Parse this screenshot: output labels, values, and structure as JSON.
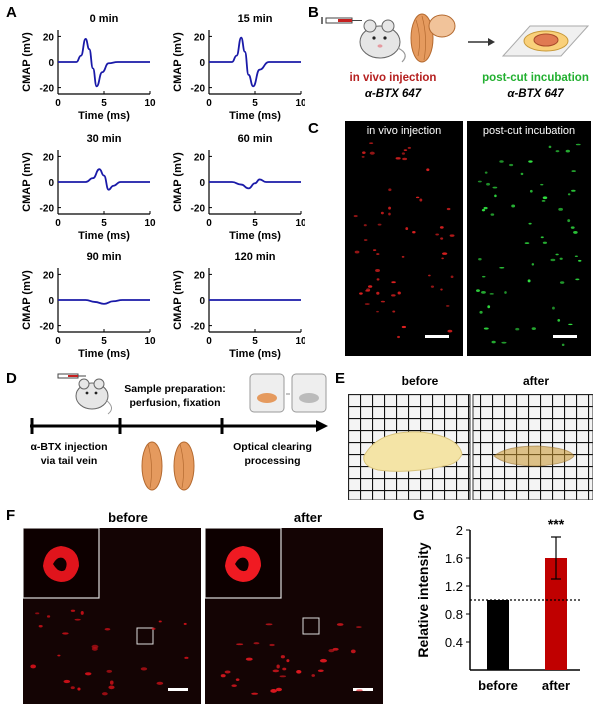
{
  "panel_labels": {
    "A": "A",
    "B": "B",
    "C": "C",
    "D": "D",
    "E": "E",
    "F": "F",
    "G": "G"
  },
  "panelA": {
    "ylabel": "CMAP (mV)",
    "xlabel": "Time (ms)",
    "yticks": [
      "20",
      "0",
      "-20"
    ],
    "xticks": [
      "0",
      "5",
      "10"
    ],
    "titles": [
      "0 min",
      "15 min",
      "30 min",
      "60 min",
      "90 min",
      "120 min"
    ],
    "line_color": "#1a1aa8"
  },
  "panelB": {
    "label_invivo": "in vivo injection",
    "label_postcut": "post-cut incubation",
    "sub_left": "α-BTX 647",
    "sub_right": "α-BTX 647",
    "color_red": "#b52020",
    "color_green": "#22b030"
  },
  "panelC": {
    "left_title": "in vivo injection",
    "right_title": "post-cut incubation"
  },
  "panelD": {
    "step1": "α-BTX injection\nvia tail vein",
    "step2_title": "Sample preparation:",
    "step2_sub": "perfusion, fixation",
    "step3": "Optical clearing\nprocessing"
  },
  "panelE": {
    "before": "before",
    "after": "after"
  },
  "panelF": {
    "before": "before",
    "after": "after"
  },
  "chart_data": [
    {
      "type": "line",
      "title": "0 min",
      "xlabel": "Time (ms)",
      "ylabel": "CMAP (mV)",
      "xlim": [
        0,
        10
      ],
      "ylim": [
        -25,
        25
      ],
      "x": [
        0,
        2,
        2.5,
        3.0,
        3.4,
        3.8,
        4.2,
        4.8,
        5.5,
        6.5,
        8,
        10
      ],
      "y": [
        0,
        0,
        5,
        18,
        10,
        -5,
        -19,
        -8,
        -1,
        0,
        0,
        0
      ]
    },
    {
      "type": "line",
      "title": "15 min",
      "xlabel": "Time (ms)",
      "ylabel": "CMAP (mV)",
      "xlim": [
        0,
        10
      ],
      "ylim": [
        -25,
        25
      ],
      "x": [
        0,
        2.5,
        3.0,
        3.5,
        3.9,
        4.3,
        4.8,
        5.5,
        6.5,
        10
      ],
      "y": [
        0,
        0,
        5,
        19,
        8,
        -10,
        -19,
        -6,
        0,
        0
      ]
    },
    {
      "type": "line",
      "title": "30 min",
      "xlabel": "Time (ms)",
      "ylabel": "CMAP (mV)",
      "xlim": [
        0,
        10
      ],
      "ylim": [
        -25,
        25
      ],
      "x": [
        0,
        3,
        3.8,
        4.5,
        5.0,
        5.5,
        6.0,
        6.8,
        10
      ],
      "y": [
        0,
        0,
        3,
        10,
        5,
        -6,
        -3,
        0,
        0
      ]
    },
    {
      "type": "line",
      "title": "60 min",
      "xlabel": "Time (ms)",
      "ylabel": "CMAP (mV)",
      "xlim": [
        0,
        10
      ],
      "ylim": [
        -25,
        25
      ],
      "x": [
        0,
        2.5,
        3.5,
        4.3,
        5.0,
        5.5,
        6.2,
        7.5,
        10
      ],
      "y": [
        0,
        0,
        -2,
        -5,
        -1,
        2,
        0,
        0,
        0
      ]
    },
    {
      "type": "line",
      "title": "90 min",
      "xlabel": "Time (ms)",
      "ylabel": "CMAP (mV)",
      "xlim": [
        0,
        10
      ],
      "ylim": [
        -25,
        25
      ],
      "x": [
        0,
        3,
        4,
        5,
        6,
        7,
        10
      ],
      "y": [
        0,
        0,
        -1.5,
        -3,
        -1,
        0,
        0
      ]
    },
    {
      "type": "line",
      "title": "120 min",
      "xlabel": "Time (ms)",
      "ylabel": "CMAP (mV)",
      "xlim": [
        0,
        10
      ],
      "ylim": [
        -25,
        25
      ],
      "x": [
        0,
        10
      ],
      "y": [
        0,
        0
      ]
    },
    {
      "type": "bar",
      "title": "",
      "ylabel": "Relative intensity",
      "categories": [
        "before",
        "after"
      ],
      "values": [
        1.0,
        1.6
      ],
      "errors": [
        0,
        0.3
      ],
      "colors": [
        "#000000",
        "#c00000"
      ],
      "ylim": [
        0,
        2
      ],
      "yticks": [
        "0.4",
        "0.8",
        "1.2",
        "1.6",
        "2"
      ],
      "reference_line": 1.0,
      "annotation": "***"
    }
  ]
}
